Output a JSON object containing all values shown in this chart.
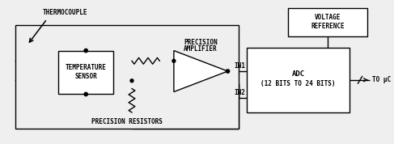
{
  "bg_color": "#efefef",
  "box_color": "#ffffff",
  "line_color": "#000000",
  "font_size": 6.0,
  "small_font": 5.5,
  "thermocouple_label": "THERMOCOUPLE",
  "precision_amp_label_1": "PRECISION",
  "precision_amp_label_2": "AMPLIFIER",
  "temp_sensor_label_1": "TEMPERATURE",
  "temp_sensor_label_2": "SENSOR",
  "adc_label_1": "ADC",
  "adc_label_2": "(12 BITS TO 24 BITS)",
  "voltage_ref_label_1": "VOLTAGE",
  "voltage_ref_label_2": "REFERENCE",
  "precision_res_label": "PRECISION RESISTORS",
  "in1_label": "IN1",
  "in2_label": "IN2",
  "to_uc_label": "TO μC"
}
